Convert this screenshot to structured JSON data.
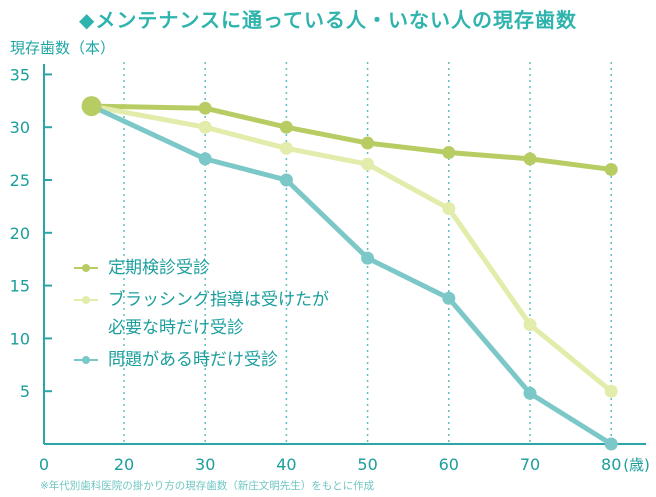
{
  "chart_data": {
    "type": "line",
    "title": "◆メンテナンスに通っている人・いない人の現存歯数",
    "ylabel": "現存歯数（本）",
    "xlabel": "",
    "x_unit_label": "(歳)",
    "x_ticks": [
      "0",
      "20",
      "30",
      "40",
      "50",
      "60",
      "70",
      "80"
    ],
    "y_ticks": [
      "5",
      "10",
      "15",
      "20",
      "25",
      "30",
      "35"
    ],
    "xlim": [
      10,
      85
    ],
    "ylim": [
      0,
      36
    ],
    "grid": "dotted vertical",
    "legend_position": "middle-left",
    "series": [
      {
        "name": "定期検診受診",
        "color": "#b7cd64",
        "x": [
          16,
          30,
          40,
          50,
          60,
          70,
          80
        ],
        "values": [
          32,
          31.8,
          30,
          28.5,
          27.6,
          27,
          26
        ]
      },
      {
        "name": "ブラッシング指導は受けたが\n必要な時だけ受診",
        "color": "#e3ecaa",
        "x": [
          16,
          30,
          40,
          50,
          60,
          70,
          80
        ],
        "values": [
          32,
          30,
          28,
          26.5,
          22.3,
          11.3,
          5
        ]
      },
      {
        "name": "問題がある時だけ受診",
        "color": "#7cc8c8",
        "x": [
          16,
          30,
          40,
          50,
          60,
          70,
          80
        ],
        "values": [
          32,
          27,
          25,
          17.6,
          13.8,
          4.8,
          0
        ]
      }
    ],
    "shared_start_point": [
      16,
      32
    ]
  },
  "footnote": "※年代別歯科医院の掛かり方の現存歯数（新庄文明先生）をもとに作成",
  "colors": {
    "title": "#2fb3ad",
    "axis": "#2aa6a8",
    "grid": "#5fc0c0",
    "tick_text": "#1b9e9c"
  }
}
